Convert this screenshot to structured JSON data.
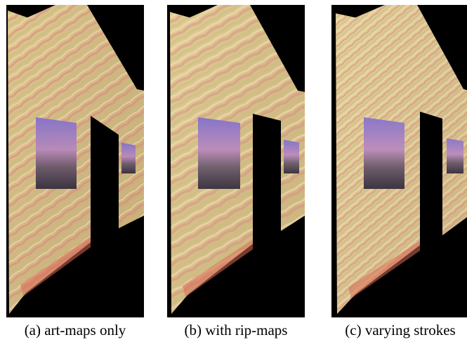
{
  "figure": {
    "panels": [
      {
        "caption": "(a) art-maps only"
      },
      {
        "caption": "(b) with rip-maps"
      },
      {
        "caption": "(c) varying strokes"
      }
    ]
  },
  "colors": {
    "background": "#000000",
    "wall_base": "#d8c08a",
    "stroke_pink": "#d58a78",
    "stroke_green": "#b8c075",
    "stroke_cream": "#eee0b0",
    "painting_sky": "#8f78c4",
    "painting_land": "#5a4a58"
  }
}
